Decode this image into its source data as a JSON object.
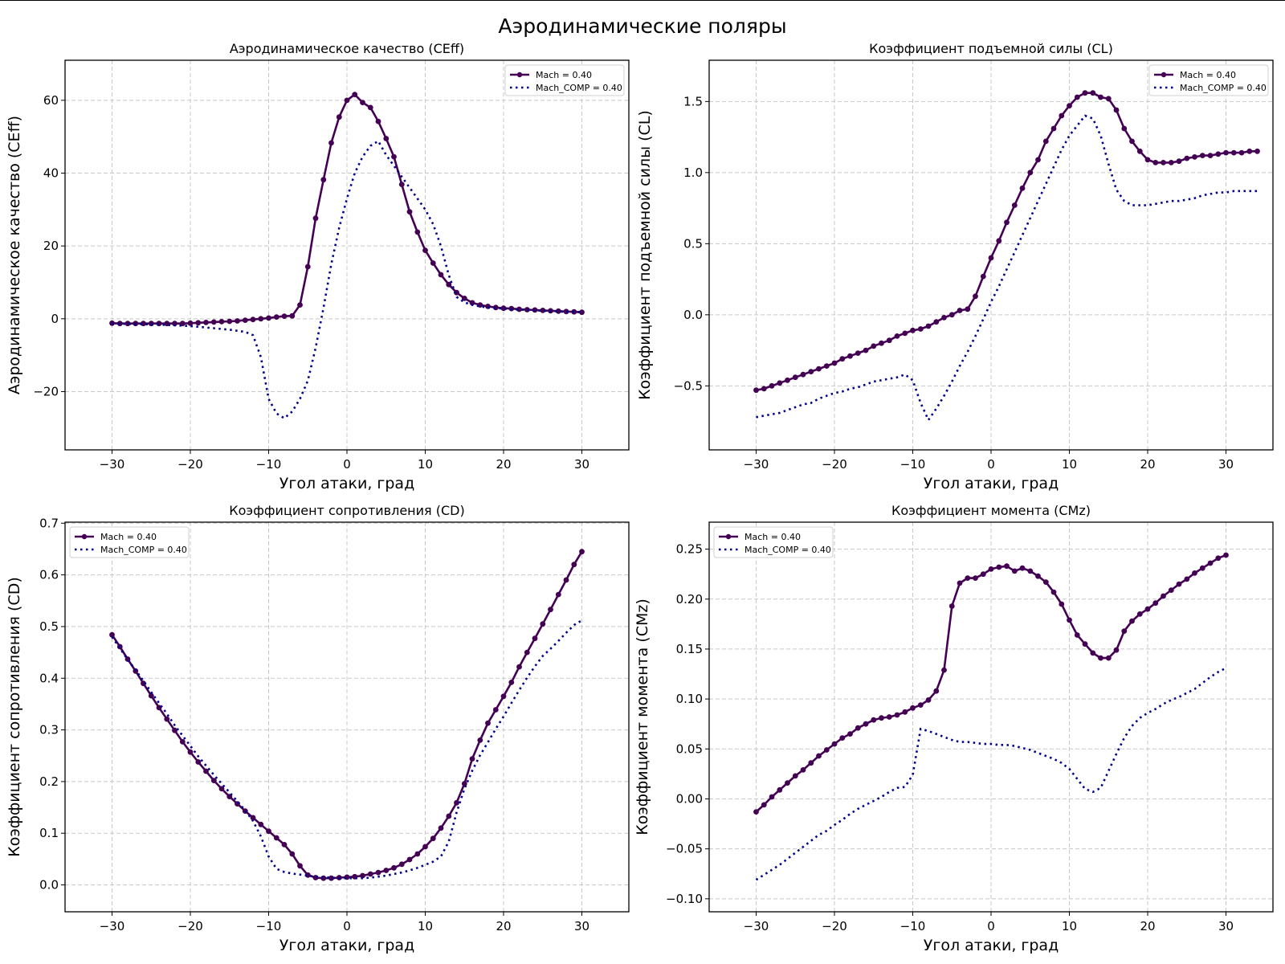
{
  "suptitle": "Аэродинамические поляры",
  "colors": {
    "mach": "#440154",
    "comp": "#00008b",
    "grid": "#c8c8c8"
  },
  "legend": {
    "mach": "Mach = 0.40",
    "comp": "Mach_COMP = 0.40"
  },
  "chart_data": [
    {
      "type": "line",
      "title": "Аэродинамическое качество (CEff)",
      "xlabel": "Угол атаки, град",
      "ylabel": "Аэродинамическое качество (CEff)",
      "xlim": [
        -36,
        36
      ],
      "ylim": [
        -36,
        71
      ],
      "xticks": [
        -30,
        -20,
        -10,
        0,
        10,
        20,
        30
      ],
      "xtick_labels": [
        "−30",
        "−20",
        "−10",
        "0",
        "10",
        "20",
        "30"
      ],
      "yticks": [
        -20,
        0,
        20,
        40,
        60
      ],
      "ytick_labels": [
        "−20",
        "0",
        "20",
        "40",
        "60"
      ],
      "grid": true,
      "legend_position": "upper right",
      "x_start": -30,
      "x_step": 1,
      "series": [
        {
          "name": "Mach = 0.40",
          "style": "solid-markers",
          "values": [
            -1.2,
            -1.3,
            -1.3,
            -1.3,
            -1.3,
            -1.3,
            -1.3,
            -1.3,
            -1.3,
            -1.3,
            -1.2,
            -1.1,
            -1.0,
            -0.9,
            -0.8,
            -0.7,
            -0.6,
            -0.4,
            -0.2,
            0.0,
            0.2,
            0.5,
            0.7,
            0.8,
            3.8,
            14.3,
            27.6,
            38.2,
            48.3,
            55.4,
            60.0,
            61.6,
            59.4,
            58.0,
            54.2,
            49.5,
            44.5,
            36.9,
            29.4,
            23.8,
            18.8,
            15.3,
            12.1,
            9.4,
            7.2,
            5.6,
            4.4,
            3.8,
            3.4,
            3.1,
            2.9,
            2.8,
            2.6,
            2.5,
            2.4,
            2.3,
            2.2,
            2.1,
            2.0,
            1.9,
            1.8
          ]
        },
        {
          "name": "Mach_COMP = 0.40",
          "style": "dotted",
          "values": [
            -1.3,
            -1.4,
            -1.4,
            -1.5,
            -1.5,
            -1.6,
            -1.6,
            -1.7,
            -1.8,
            -1.9,
            -2.0,
            -2.2,
            -2.4,
            -2.6,
            -2.8,
            -3.0,
            -3.3,
            -3.6,
            -4.5,
            -10.5,
            -22.0,
            -26.0,
            -27.3,
            -25.5,
            -22.0,
            -17.0,
            -8.0,
            3.0,
            15.0,
            25.0,
            33.0,
            40.0,
            44.5,
            47.5,
            48.8,
            45.0,
            42.0,
            39.0,
            36.0,
            33.0,
            30.0,
            26.0,
            20.0,
            12.0,
            6.0,
            4.5,
            3.8,
            3.4,
            3.1,
            2.9,
            2.8,
            2.6,
            2.5,
            2.4,
            2.3,
            2.2,
            2.1,
            2.0,
            1.9,
            1.9,
            1.8
          ]
        }
      ]
    },
    {
      "type": "line",
      "title": "Коэффициент подъемной силы (CL)",
      "xlabel": "Угол атаки, град",
      "ylabel": "Коэффициент подъемной силы (CL)",
      "xlim": [
        -36,
        36
      ],
      "ylim": [
        -0.95,
        1.79
      ],
      "xticks": [
        -30,
        -20,
        -10,
        0,
        10,
        20,
        30
      ],
      "xtick_labels": [
        "−30",
        "−20",
        "−10",
        "0",
        "10",
        "20",
        "30"
      ],
      "yticks": [
        -0.5,
        0.0,
        0.5,
        1.0,
        1.5
      ],
      "ytick_labels": [
        "−0.5",
        "0.0",
        "0.5",
        "1.0",
        "1.5"
      ],
      "grid": true,
      "legend_position": "upper right",
      "x_start": -30,
      "x_step": 1,
      "series": [
        {
          "name": "Mach = 0.40",
          "style": "solid-markers",
          "values": [
            -0.53,
            -0.52,
            -0.5,
            -0.48,
            -0.46,
            -0.44,
            -0.42,
            -0.4,
            -0.38,
            -0.36,
            -0.34,
            -0.31,
            -0.29,
            -0.27,
            -0.25,
            -0.22,
            -0.2,
            -0.18,
            -0.15,
            -0.13,
            -0.11,
            -0.1,
            -0.08,
            -0.05,
            -0.02,
            0.0,
            0.03,
            0.04,
            0.13,
            0.27,
            0.4,
            0.52,
            0.65,
            0.77,
            0.89,
            1.0,
            1.09,
            1.22,
            1.31,
            1.4,
            1.47,
            1.53,
            1.56,
            1.56,
            1.53,
            1.52,
            1.44,
            1.31,
            1.22,
            1.15,
            1.09,
            1.07,
            1.07,
            1.07,
            1.08,
            1.1,
            1.11,
            1.12,
            1.12,
            1.13,
            1.14,
            1.14,
            1.14,
            1.15,
            1.15
          ]
        },
        {
          "name": "Mach_COMP = 0.40",
          "style": "dotted",
          "values": [
            -0.72,
            -0.71,
            -0.7,
            -0.69,
            -0.67,
            -0.65,
            -0.63,
            -0.62,
            -0.59,
            -0.57,
            -0.55,
            -0.54,
            -0.52,
            -0.51,
            -0.49,
            -0.47,
            -0.46,
            -0.45,
            -0.44,
            -0.42,
            -0.46,
            -0.62,
            -0.74,
            -0.66,
            -0.57,
            -0.47,
            -0.36,
            -0.26,
            -0.15,
            -0.03,
            0.09,
            0.2,
            0.32,
            0.44,
            0.56,
            0.68,
            0.8,
            0.92,
            1.04,
            1.16,
            1.26,
            1.33,
            1.4,
            1.38,
            1.26,
            1.06,
            0.88,
            0.8,
            0.77,
            0.77,
            0.77,
            0.78,
            0.79,
            0.8,
            0.8,
            0.81,
            0.82,
            0.84,
            0.85,
            0.86,
            0.86,
            0.87,
            0.87,
            0.87,
            0.87
          ]
        }
      ]
    },
    {
      "type": "line",
      "title": "Коэффициент сопротивления (CD)",
      "xlabel": "Угол атаки, град",
      "ylabel": "Коэффициент сопротивления (CD)",
      "xlim": [
        -36,
        36
      ],
      "ylim": [
        -0.052,
        0.702
      ],
      "xticks": [
        -30,
        -20,
        -10,
        0,
        10,
        20,
        30
      ],
      "xtick_labels": [
        "−30",
        "−20",
        "−10",
        "0",
        "10",
        "20",
        "30"
      ],
      "yticks": [
        0.0,
        0.1,
        0.2,
        0.3,
        0.4,
        0.5,
        0.6,
        0.7
      ],
      "ytick_labels": [
        "0.0",
        "0.1",
        "0.2",
        "0.3",
        "0.4",
        "0.5",
        "0.6",
        "0.7"
      ],
      "grid": true,
      "legend_position": "upper left",
      "x_start": -30,
      "x_step": 1,
      "series": [
        {
          "name": "Mach = 0.40",
          "style": "solid-markers",
          "values": [
            0.484,
            0.461,
            0.437,
            0.414,
            0.39,
            0.366,
            0.343,
            0.321,
            0.299,
            0.277,
            0.257,
            0.238,
            0.22,
            0.202,
            0.186,
            0.171,
            0.157,
            0.143,
            0.13,
            0.117,
            0.104,
            0.091,
            0.078,
            0.06,
            0.037,
            0.019,
            0.014,
            0.013,
            0.013,
            0.014,
            0.015,
            0.016,
            0.018,
            0.021,
            0.024,
            0.028,
            0.033,
            0.04,
            0.049,
            0.06,
            0.074,
            0.09,
            0.11,
            0.133,
            0.159,
            0.196,
            0.244,
            0.28,
            0.313,
            0.339,
            0.365,
            0.392,
            0.422,
            0.45,
            0.477,
            0.505,
            0.533,
            0.562,
            0.59,
            0.62,
            0.645
          ]
        },
        {
          "name": "Mach_COMP = 0.40",
          "style": "dotted",
          "values": [
            0.48,
            0.458,
            0.436,
            0.416,
            0.395,
            0.373,
            0.352,
            0.331,
            0.309,
            0.289,
            0.269,
            0.249,
            0.231,
            0.213,
            0.196,
            0.179,
            0.162,
            0.144,
            0.124,
            0.094,
            0.055,
            0.031,
            0.025,
            0.022,
            0.02,
            0.018,
            0.016,
            0.015,
            0.014,
            0.013,
            0.013,
            0.013,
            0.013,
            0.014,
            0.016,
            0.018,
            0.021,
            0.024,
            0.028,
            0.033,
            0.039,
            0.045,
            0.055,
            0.084,
            0.14,
            0.186,
            0.221,
            0.251,
            0.276,
            0.302,
            0.326,
            0.352,
            0.377,
            0.401,
            0.423,
            0.443,
            0.457,
            0.472,
            0.488,
            0.503,
            0.512
          ]
        }
      ]
    },
    {
      "type": "line",
      "title": "Коэффициент момента (CMz)",
      "xlabel": "Угол атаки, град",
      "ylabel": "Коэффициент момента (CMz)",
      "xlim": [
        -36,
        36
      ],
      "ylim": [
        -0.113,
        0.277
      ],
      "xticks": [
        -30,
        -20,
        -10,
        0,
        10,
        20,
        30
      ],
      "xtick_labels": [
        "−30",
        "−20",
        "−10",
        "0",
        "10",
        "20",
        "30"
      ],
      "yticks": [
        -0.1,
        -0.05,
        0.0,
        0.05,
        0.1,
        0.15,
        0.2,
        0.25
      ],
      "ytick_labels": [
        "−0.10",
        "−0.05",
        "0.00",
        "0.05",
        "0.10",
        "0.15",
        "0.20",
        "0.25"
      ],
      "grid": true,
      "legend_position": "upper left",
      "x_start": -30,
      "x_step": 1,
      "series": [
        {
          "name": "Mach = 0.40",
          "style": "solid-markers",
          "values": [
            -0.013,
            -0.006,
            0.002,
            0.009,
            0.016,
            0.023,
            0.029,
            0.036,
            0.043,
            0.049,
            0.055,
            0.061,
            0.065,
            0.071,
            0.075,
            0.079,
            0.081,
            0.082,
            0.084,
            0.087,
            0.091,
            0.094,
            0.099,
            0.108,
            0.129,
            0.193,
            0.216,
            0.221,
            0.221,
            0.225,
            0.23,
            0.232,
            0.233,
            0.228,
            0.231,
            0.228,
            0.223,
            0.217,
            0.207,
            0.195,
            0.179,
            0.164,
            0.155,
            0.146,
            0.141,
            0.141,
            0.149,
            0.168,
            0.178,
            0.185,
            0.19,
            0.196,
            0.203,
            0.209,
            0.215,
            0.22,
            0.226,
            0.231,
            0.236,
            0.241,
            0.244
          ]
        },
        {
          "name": "Mach_COMP = 0.40",
          "style": "dotted",
          "values": [
            -0.081,
            -0.076,
            -0.071,
            -0.066,
            -0.06,
            -0.054,
            -0.048,
            -0.042,
            -0.036,
            -0.032,
            -0.026,
            -0.021,
            -0.015,
            -0.01,
            -0.006,
            -0.002,
            0.002,
            0.007,
            0.011,
            0.012,
            0.024,
            0.07,
            0.068,
            0.065,
            0.062,
            0.059,
            0.057,
            0.057,
            0.056,
            0.055,
            0.055,
            0.054,
            0.054,
            0.053,
            0.051,
            0.049,
            0.046,
            0.043,
            0.04,
            0.036,
            0.03,
            0.02,
            0.01,
            0.007,
            0.011,
            0.028,
            0.045,
            0.061,
            0.073,
            0.081,
            0.086,
            0.09,
            0.095,
            0.099,
            0.102,
            0.106,
            0.11,
            0.116,
            0.122,
            0.127,
            0.131
          ]
        }
      ]
    }
  ]
}
